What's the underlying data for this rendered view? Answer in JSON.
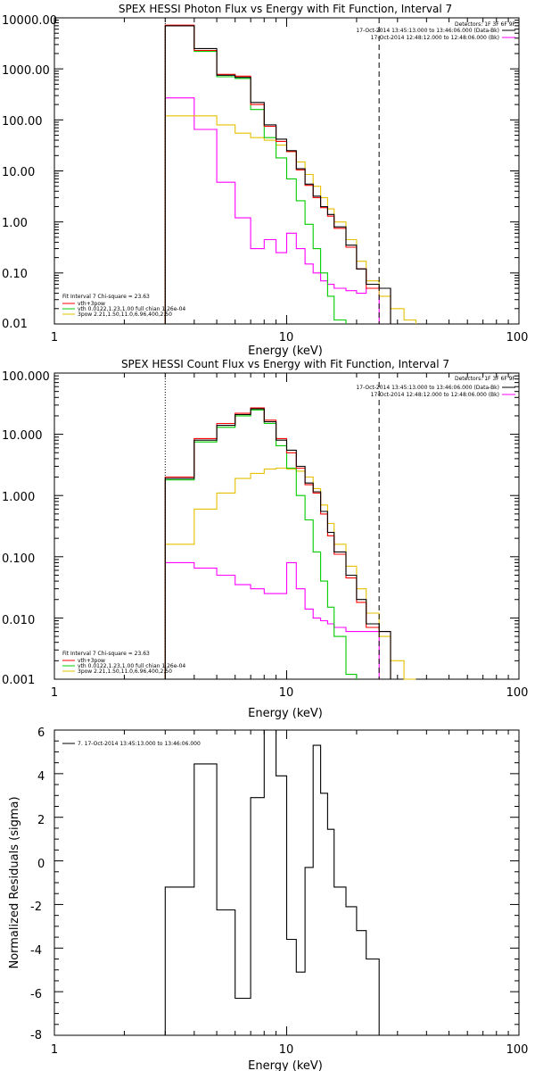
{
  "chart_data": [
    {
      "type": "line",
      "scale": "log-log",
      "title": "SPEX HESSI Photon Flux vs Energy with Fit Function, Interval 7",
      "xlabel": "Energy (keV)",
      "ylabel": "",
      "xlim": [
        1,
        100
      ],
      "ylim": [
        0.01,
        10000
      ],
      "x_ticks": [
        "1",
        "10",
        "100"
      ],
      "y_ticks": [
        "10000.00",
        "1000.00",
        "100.00",
        "10.00",
        "1.00",
        "0.10",
        "0.01"
      ],
      "vlines": {
        "dotted": 3,
        "dashed": 25
      },
      "header_text": [
        "Detectors: 1F 3F 6F 9F",
        "17-Oct-2014 13:45:13.000 to 13:46:06.000 (Data-Bk)",
        "17-Oct-2014 12:48:12.000 to 12:48:06.000 (Bk)"
      ],
      "header_colors": [
        "#000000",
        "#ff00ff"
      ],
      "legend_text": [
        "Fit Interval 7   Chi-square = 23.63",
        "vth+3pow",
        "vth 0.0122,1.23,1.00  full chian 1.26e-04",
        "3pow 2.21,1.50,11.0,6.96,400,2.50"
      ],
      "legend_colors": [
        "#ff0000",
        "#00cc00",
        "#e6c000"
      ],
      "edges": [
        3,
        4,
        5,
        6,
        7,
        8,
        9,
        10,
        11,
        12,
        13,
        14,
        15,
        16,
        18,
        20,
        22,
        25,
        28,
        32,
        36
      ],
      "series": [
        {
          "color": "#000000",
          "values": [
            7000,
            2500,
            750,
            680,
            220,
            80,
            42,
            25,
            11,
            5.5,
            3.2,
            2.0,
            1.4,
            0.8,
            0.35,
            0.12,
            0.06,
            0.05,
            null,
            null
          ]
        },
        {
          "color": "#ff0000",
          "values": [
            7200,
            2300,
            780,
            720,
            200,
            75,
            38,
            24,
            10.5,
            5.2,
            3.0,
            1.9,
            1.3,
            0.75,
            0.32,
            0.12,
            0.05,
            0.05,
            null,
            null
          ]
        },
        {
          "color": "#00cc00",
          "values": [
            7000,
            2200,
            700,
            650,
            160,
            45,
            18,
            7,
            2.6,
            0.9,
            0.3,
            0.1,
            0.035,
            0.012,
            null,
            null,
            null,
            null,
            null,
            null
          ]
        },
        {
          "color": "#e6c000",
          "values": [
            120,
            120,
            80,
            55,
            45,
            40,
            32,
            24,
            15,
            8.5,
            5,
            3,
            1.8,
            1.0,
            0.45,
            0.17,
            0.07,
            0.035,
            0.02,
            0.012
          ]
        },
        {
          "color": "#ff00ff",
          "values": [
            270,
            65,
            6,
            1.2,
            0.3,
            0.45,
            0.25,
            0.6,
            0.3,
            0.15,
            0.1,
            0.07,
            0.06,
            0.05,
            0.045,
            0.04,
            0.05,
            null,
            null,
            null
          ]
        }
      ]
    },
    {
      "type": "line",
      "scale": "log-log",
      "title": "SPEX HESSI Count Flux vs Energy with Fit Function, Interval 7",
      "xlabel": "Energy (keV)",
      "ylabel": "",
      "xlim": [
        1,
        100
      ],
      "ylim": [
        0.001,
        100
      ],
      "x_ticks": [
        "1",
        "10",
        "100"
      ],
      "y_ticks": [
        "100.000",
        "10.000",
        "1.000",
        "0.100",
        "0.010",
        "0.001"
      ],
      "vlines": {
        "dotted": 3,
        "dashed": 25
      },
      "header_text": [
        "Detectors: 1F 3F 6F 9F",
        "17-Oct-2014 13:45:13.000 to 13:46:06.000 (Data-Bk)",
        "17-Oct-2014 12:48:12.000 to 12:48:06.000 (Bk)"
      ],
      "header_colors": [
        "#000000",
        "#ff00ff"
      ],
      "legend_text": [
        "Fit Interval 7   Chi-square = 23.63",
        "vth+3pow",
        "vth 0.0122,1.23,1.00  full chian 1.26e-04",
        "3pow 2.21,1.50,11.0,6.96,400,2.50"
      ],
      "legend_colors": [
        "#ff0000",
        "#00cc00",
        "#e6c000"
      ],
      "edges": [
        3,
        4,
        5,
        6,
        7,
        8,
        9,
        10,
        11,
        12,
        13,
        14,
        15,
        16,
        18,
        20,
        22,
        25,
        28,
        32,
        36
      ],
      "series": [
        {
          "color": "#000000",
          "values": [
            1.9,
            8,
            14,
            21,
            26,
            16,
            8,
            5.5,
            3,
            1.6,
            1.15,
            0.55,
            0.25,
            0.12,
            0.05,
            0.02,
            0.008,
            0.006,
            null,
            null
          ]
        },
        {
          "color": "#ff0000",
          "values": [
            2.0,
            8.5,
            15,
            22,
            27,
            17,
            8.5,
            5,
            2.8,
            1.5,
            1.1,
            0.5,
            0.22,
            0.11,
            0.045,
            0.018,
            0.007,
            0.006,
            null,
            null
          ]
        },
        {
          "color": "#00cc00",
          "values": [
            1.8,
            7.5,
            13,
            20,
            25,
            15,
            6.5,
            2.8,
            1.0,
            0.4,
            0.12,
            0.04,
            0.015,
            0.005,
            0.0012,
            null,
            null,
            null,
            null,
            null
          ]
        },
        {
          "color": "#e6c000",
          "values": [
            0.16,
            0.6,
            1.1,
            1.9,
            2.3,
            2.7,
            2.8,
            2.7,
            2.5,
            2.0,
            1.3,
            0.7,
            0.35,
            0.16,
            0.07,
            0.03,
            0.012,
            0.005,
            0.002,
            0.001
          ]
        },
        {
          "color": "#ff00ff",
          "values": [
            0.08,
            0.065,
            0.05,
            0.035,
            0.03,
            0.025,
            0.025,
            0.08,
            0.03,
            0.014,
            0.01,
            0.009,
            0.008,
            0.007,
            0.006,
            0.006,
            0.006,
            null,
            null,
            null
          ]
        }
      ]
    },
    {
      "type": "line",
      "scale": "log-x",
      "title": "",
      "xlabel": "Energy (keV)",
      "ylabel": "Normalized Residuals (sigma)",
      "xlim": [
        1,
        100
      ],
      "ylim": [
        -8,
        6
      ],
      "x_ticks": [
        "1",
        "10",
        "100"
      ],
      "y_ticks": [
        "6",
        "4",
        "2",
        "0",
        "-2",
        "-4",
        "-6",
        "-8"
      ],
      "legend_text": [
        "7. 17-Oct-2014 13:45:13.000 to 13:46:06.000"
      ],
      "edges": [
        3,
        4,
        5,
        6,
        7,
        8,
        9,
        10,
        11,
        12,
        13,
        14,
        15,
        16,
        18,
        20,
        22,
        25
      ],
      "series": [
        {
          "color": "#000000",
          "values": [
            -1.2,
            4.45,
            -2.25,
            -6.3,
            2.9,
            6.05,
            3.9,
            -3.6,
            -5.1,
            -0.3,
            5.3,
            3.1,
            1.45,
            -1.2,
            -2.1,
            -3.2,
            -4.5
          ]
        }
      ]
    }
  ]
}
